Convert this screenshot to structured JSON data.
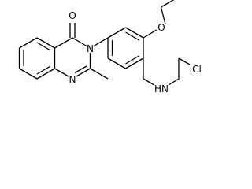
{
  "atoms": [
    {
      "label": "O"
    },
    {
      "label": "N"
    },
    {
      "label": "N"
    },
    {
      "label": "O"
    },
    {
      "label": "HN"
    },
    {
      "label": "Cl"
    }
  ]
}
